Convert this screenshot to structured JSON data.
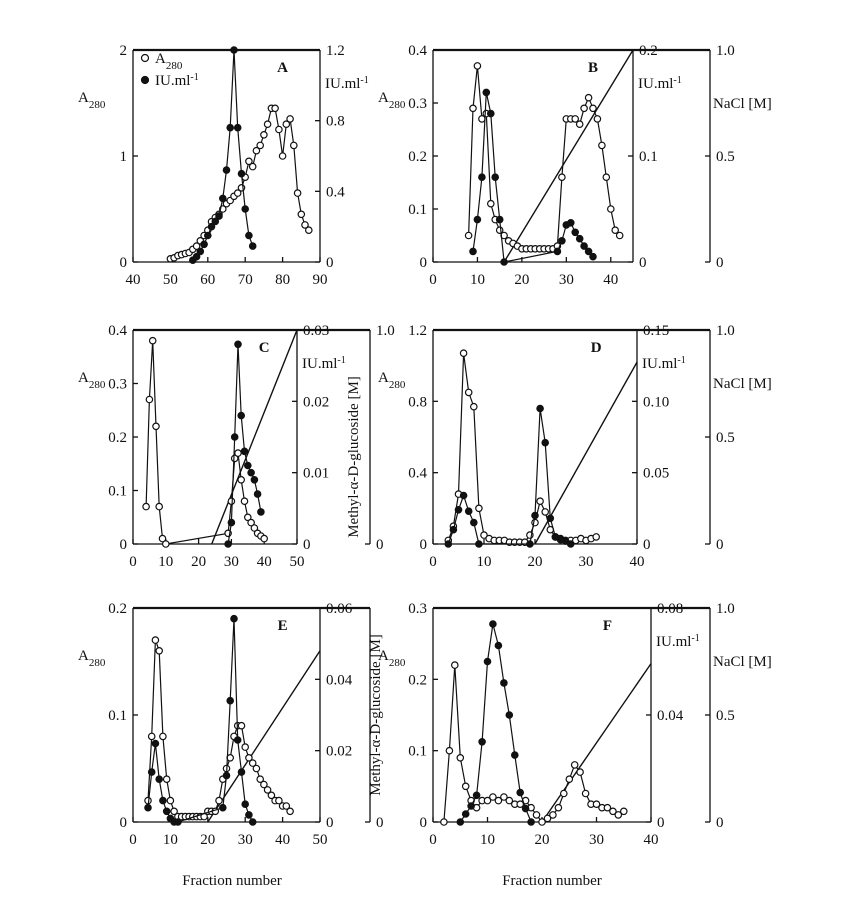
{
  "figure": {
    "xlabel_left": "Fraction number",
    "xlabel_right": "Fraction number"
  },
  "chart_data": [
    {
      "type": "line",
      "panel": "A",
      "xlim": [
        40,
        90
      ],
      "xticks": [
        "40",
        "50",
        "60",
        "70",
        "80",
        "90"
      ],
      "left_axis": {
        "label": "A280",
        "lim": [
          0,
          2
        ],
        "ticks": [
          "0",
          "1",
          "2"
        ]
      },
      "right_axes": [
        {
          "label": "IU.ml-1",
          "lim": [
            0,
            1.2
          ],
          "ticks": [
            "0",
            "0.4",
            "0.8",
            "1.2"
          ]
        }
      ],
      "legend": [
        "A280",
        "IU.ml-1"
      ],
      "series": [
        {
          "name": "A280",
          "marker": "open",
          "axis": "left",
          "x": [
            50,
            51,
            52,
            53,
            54,
            55,
            56,
            57,
            58,
            59,
            60,
            61,
            62,
            63,
            64,
            65,
            66,
            67,
            68,
            69,
            70,
            71,
            72,
            73,
            74,
            75,
            76,
            77,
            78,
            79,
            80,
            81,
            82,
            83,
            84,
            85,
            86,
            87
          ],
          "y": [
            0.03,
            0.04,
            0.06,
            0.07,
            0.08,
            0.09,
            0.12,
            0.15,
            0.2,
            0.25,
            0.3,
            0.38,
            0.42,
            0.45,
            0.5,
            0.55,
            0.58,
            0.62,
            0.65,
            0.7,
            0.8,
            0.95,
            0.9,
            1.05,
            1.1,
            1.2,
            1.3,
            1.45,
            1.45,
            1.25,
            1.0,
            1.3,
            1.35,
            1.1,
            0.65,
            0.45,
            0.35,
            0.3
          ]
        },
        {
          "name": "IU.ml-1",
          "marker": "filled",
          "axis": "right",
          "x": [
            56,
            57,
            58,
            59,
            60,
            61,
            62,
            63,
            64,
            65,
            66,
            67,
            68,
            69,
            70,
            71,
            72
          ],
          "y": [
            0.01,
            0.03,
            0.06,
            0.1,
            0.15,
            0.2,
            0.23,
            0.26,
            0.36,
            0.52,
            0.76,
            1.2,
            0.76,
            0.5,
            0.3,
            0.15,
            0.09
          ]
        }
      ]
    },
    {
      "type": "line",
      "panel": "B",
      "xlim": [
        0,
        45
      ],
      "xticks": [
        "0",
        "10",
        "20",
        "30",
        "40"
      ],
      "left_axis": {
        "label": "A280",
        "lim": [
          0,
          0.4
        ],
        "ticks": [
          "0",
          "0.1",
          "0.2",
          "0.3",
          "0.4"
        ]
      },
      "right_axes": [
        {
          "label": "IU.ml-1",
          "lim": [
            0,
            0.2
          ],
          "ticks": [
            "0",
            "0.1",
            "0.2"
          ]
        },
        {
          "label": "NaCl [M]",
          "lim": [
            0,
            1.0
          ],
          "ticks": [
            "0",
            "0.5",
            "1.0"
          ]
        }
      ],
      "gradient": {
        "x": [
          16,
          45
        ],
        "y": [
          0,
          1.0
        ],
        "axis": "NaCl [M]"
      },
      "series": [
        {
          "name": "A280",
          "marker": "open",
          "axis": "left",
          "x": [
            8,
            9,
            10,
            11,
            12,
            13,
            14,
            15,
            16,
            17,
            18,
            19,
            20,
            21,
            22,
            23,
            24,
            25,
            26,
            27,
            28,
            29,
            30,
            31,
            32,
            33,
            34,
            35,
            36,
            37,
            38,
            39,
            40,
            41,
            42
          ],
          "y": [
            0.05,
            0.29,
            0.37,
            0.27,
            0.28,
            0.11,
            0.08,
            0.06,
            0.05,
            0.04,
            0.035,
            0.03,
            0.025,
            0.025,
            0.025,
            0.025,
            0.025,
            0.025,
            0.025,
            0.025,
            0.03,
            0.16,
            0.27,
            0.27,
            0.27,
            0.26,
            0.29,
            0.31,
            0.29,
            0.27,
            0.22,
            0.16,
            0.1,
            0.06,
            0.05
          ]
        },
        {
          "name": "IU.ml-1",
          "marker": "filled",
          "axis": "middle",
          "x": [
            9,
            10,
            11,
            12,
            13,
            14,
            15,
            16,
            28,
            29,
            30,
            31,
            32,
            33,
            34,
            35,
            36
          ],
          "y": [
            0.01,
            0.04,
            0.08,
            0.16,
            0.14,
            0.08,
            0.04,
            0.0,
            0.01,
            0.02,
            0.035,
            0.037,
            0.028,
            0.022,
            0.015,
            0.01,
            0.005
          ]
        }
      ]
    },
    {
      "type": "line",
      "panel": "C",
      "xlim": [
        0,
        50
      ],
      "xticks": [
        "0",
        "10",
        "20",
        "30",
        "40",
        "50"
      ],
      "left_axis": {
        "label": "A280",
        "lim": [
          0,
          0.4
        ],
        "ticks": [
          "0",
          "0.1",
          "0.2",
          "0.3",
          "0.4"
        ]
      },
      "right_axes": [
        {
          "label": "IU.ml-1",
          "lim": [
            0,
            0.03
          ],
          "ticks": [
            "0",
            "0.01",
            "0.02",
            "0.03"
          ]
        },
        {
          "label": "Methyl-α-D-glucoside [M]",
          "lim": [
            0,
            1.0
          ],
          "ticks": [
            "0",
            "1.0"
          ]
        }
      ],
      "gradient": {
        "x": [
          24,
          50
        ],
        "y": [
          0,
          1.0
        ],
        "axis": "Methyl-α-D-glucoside [M]"
      },
      "series": [
        {
          "name": "A280",
          "marker": "open",
          "axis": "left",
          "x": [
            4,
            5,
            6,
            7,
            8,
            9,
            10,
            29,
            30,
            31,
            32,
            33,
            34,
            35,
            36,
            37,
            38,
            39,
            40
          ],
          "y": [
            0.07,
            0.27,
            0.38,
            0.22,
            0.07,
            0.01,
            0.0,
            0.02,
            0.08,
            0.16,
            0.17,
            0.12,
            0.08,
            0.05,
            0.04,
            0.03,
            0.02,
            0.015,
            0.01
          ]
        },
        {
          "name": "IU.ml-1",
          "marker": "filled",
          "axis": "middle",
          "x": [
            29,
            30,
            31,
            32,
            33,
            34,
            35,
            36,
            37,
            38,
            39
          ],
          "y": [
            0.0,
            0.003,
            0.015,
            0.028,
            0.018,
            0.013,
            0.011,
            0.01,
            0.009,
            0.007,
            0.0045
          ]
        }
      ]
    },
    {
      "type": "line",
      "panel": "D",
      "xlim": [
        0,
        40
      ],
      "xticks": [
        "0",
        "10",
        "20",
        "30",
        "40"
      ],
      "left_axis": {
        "label": "A280",
        "lim": [
          0,
          1.2
        ],
        "ticks": [
          "0",
          "0.4",
          "0.8",
          "1.2"
        ]
      },
      "right_axes": [
        {
          "label": "IU.ml-1",
          "lim": [
            0,
            0.15
          ],
          "ticks": [
            "0",
            "0.05",
            "0.10",
            "0.15"
          ]
        },
        {
          "label": "NaCl [M]",
          "lim": [
            0,
            1.0
          ],
          "ticks": [
            "0",
            "0.5",
            "1.0"
          ]
        }
      ],
      "gradient": {
        "x": [
          20,
          40
        ],
        "y": [
          0,
          0.85
        ],
        "axis": "NaCl [M]"
      },
      "series": [
        {
          "name": "A280",
          "marker": "open",
          "axis": "left",
          "x": [
            3,
            4,
            5,
            6,
            7,
            8,
            9,
            10,
            11,
            12,
            13,
            14,
            15,
            16,
            17,
            18,
            19,
            20,
            21,
            22,
            23,
            24,
            25,
            26,
            27,
            28,
            29,
            30,
            31,
            32
          ],
          "y": [
            0.02,
            0.1,
            0.28,
            1.07,
            0.85,
            0.77,
            0.2,
            0.05,
            0.03,
            0.02,
            0.02,
            0.02,
            0.01,
            0.01,
            0.01,
            0.01,
            0.05,
            0.12,
            0.24,
            0.18,
            0.08,
            0.04,
            0.03,
            0.02,
            0.02,
            0.02,
            0.03,
            0.02,
            0.03,
            0.04
          ]
        },
        {
          "name": "IU.ml-1",
          "marker": "filled",
          "axis": "middle",
          "x": [
            3,
            4,
            5,
            6,
            7,
            8,
            9,
            19,
            20,
            21,
            22,
            23,
            24,
            25,
            26,
            27
          ],
          "y": [
            0.0,
            0.01,
            0.024,
            0.034,
            0.023,
            0.015,
            0.0,
            0.0,
            0.02,
            0.095,
            0.071,
            0.018,
            0.005,
            0.003,
            0.002,
            0.0
          ]
        }
      ]
    },
    {
      "type": "line",
      "panel": "E",
      "xlim": [
        0,
        50
      ],
      "xticks": [
        "0",
        "10",
        "20",
        "30",
        "40",
        "50"
      ],
      "left_axis": {
        "label": "A280",
        "lim": [
          0,
          0.2
        ],
        "ticks": [
          "0",
          "0.1",
          "0.2"
        ]
      },
      "right_axes": [
        {
          "label": "Methyl-α-D-glucoside [M]",
          "lim": [
            0,
            0.06
          ],
          "ticks": [
            "0",
            "0.02",
            "0.04",
            "0.06"
          ]
        },
        {
          "label": "",
          "lim": [
            0,
            1.0
          ],
          "ticks": [
            "0"
          ]
        }
      ],
      "gradient": {
        "x": [
          20,
          50
        ],
        "y": [
          0,
          0.048
        ],
        "axis": "Methyl-α-D-glucoside [M]"
      },
      "series": [
        {
          "name": "A280",
          "marker": "open",
          "axis": "left",
          "x": [
            4,
            5,
            6,
            7,
            8,
            9,
            10,
            11,
            12,
            13,
            14,
            15,
            16,
            17,
            18,
            19,
            20,
            21,
            22,
            23,
            24,
            25,
            26,
            27,
            28,
            29,
            30,
            31,
            32,
            33,
            34,
            35,
            36,
            37,
            38,
            39,
            40,
            41,
            42
          ],
          "y": [
            0.02,
            0.08,
            0.17,
            0.16,
            0.08,
            0.04,
            0.02,
            0.01,
            0.005,
            0.005,
            0.005,
            0.005,
            0.005,
            0.005,
            0.005,
            0.005,
            0.01,
            0.01,
            0.01,
            0.02,
            0.04,
            0.05,
            0.06,
            0.08,
            0.09,
            0.09,
            0.07,
            0.06,
            0.055,
            0.05,
            0.04,
            0.035,
            0.03,
            0.025,
            0.02,
            0.02,
            0.015,
            0.015,
            0.01
          ]
        },
        {
          "name": "IU.ml-1",
          "marker": "filled",
          "axis": "middle",
          "x": [
            4,
            5,
            6,
            7,
            8,
            9,
            10,
            11,
            12,
            24,
            25,
            26,
            27,
            28,
            29,
            30,
            31,
            32
          ],
          "y": [
            0.004,
            0.014,
            0.022,
            0.012,
            0.006,
            0.003,
            0.001,
            0.0,
            0.0,
            0.004,
            0.013,
            0.034,
            0.057,
            0.023,
            0.014,
            0.005,
            0.002,
            0.0
          ]
        }
      ]
    },
    {
      "type": "line",
      "panel": "F",
      "xlim": [
        0,
        40
      ],
      "xticks": [
        "0",
        "10",
        "20",
        "30",
        "40"
      ],
      "left_axis": {
        "label": "A280",
        "lim": [
          0,
          0.3
        ],
        "ticks": [
          "0",
          "0.1",
          "0.2",
          "0.3"
        ]
      },
      "right_axes": [
        {
          "label": "IU.ml-1",
          "lim": [
            0,
            0.08
          ],
          "ticks": [
            "0",
            "0.04",
            "0.08"
          ]
        },
        {
          "label": "NaCl [M]",
          "lim": [
            0,
            1.0
          ],
          "ticks": [
            "0",
            "0.5",
            "1.0"
          ]
        }
      ],
      "gradient": {
        "x": [
          20,
          40
        ],
        "y": [
          0,
          0.74
        ],
        "axis": "NaCl [M]"
      },
      "series": [
        {
          "name": "A280",
          "marker": "open",
          "axis": "left",
          "x": [
            2,
            3,
            4,
            5,
            6,
            7,
            8,
            9,
            10,
            11,
            12,
            13,
            14,
            15,
            16,
            17,
            18,
            19,
            20,
            21,
            22,
            23,
            24,
            25,
            26,
            27,
            28,
            29,
            30,
            31,
            32,
            33,
            34,
            35
          ],
          "y": [
            0.0,
            0.1,
            0.22,
            0.09,
            0.05,
            0.03,
            0.02,
            0.03,
            0.03,
            0.035,
            0.03,
            0.035,
            0.03,
            0.025,
            0.025,
            0.03,
            0.02,
            0.01,
            0.0,
            0.005,
            0.01,
            0.02,
            0.04,
            0.06,
            0.08,
            0.07,
            0.04,
            0.025,
            0.025,
            0.02,
            0.02,
            0.015,
            0.01,
            0.015
          ]
        },
        {
          "name": "IU.ml-1",
          "marker": "filled",
          "axis": "middle",
          "x": [
            5,
            6,
            7,
            8,
            9,
            10,
            11,
            12,
            13,
            14,
            15,
            16,
            17,
            18
          ],
          "y": [
            0.0,
            0.003,
            0.006,
            0.01,
            0.03,
            0.06,
            0.074,
            0.066,
            0.052,
            0.04,
            0.025,
            0.011,
            0.005,
            0.0
          ]
        }
      ]
    }
  ]
}
